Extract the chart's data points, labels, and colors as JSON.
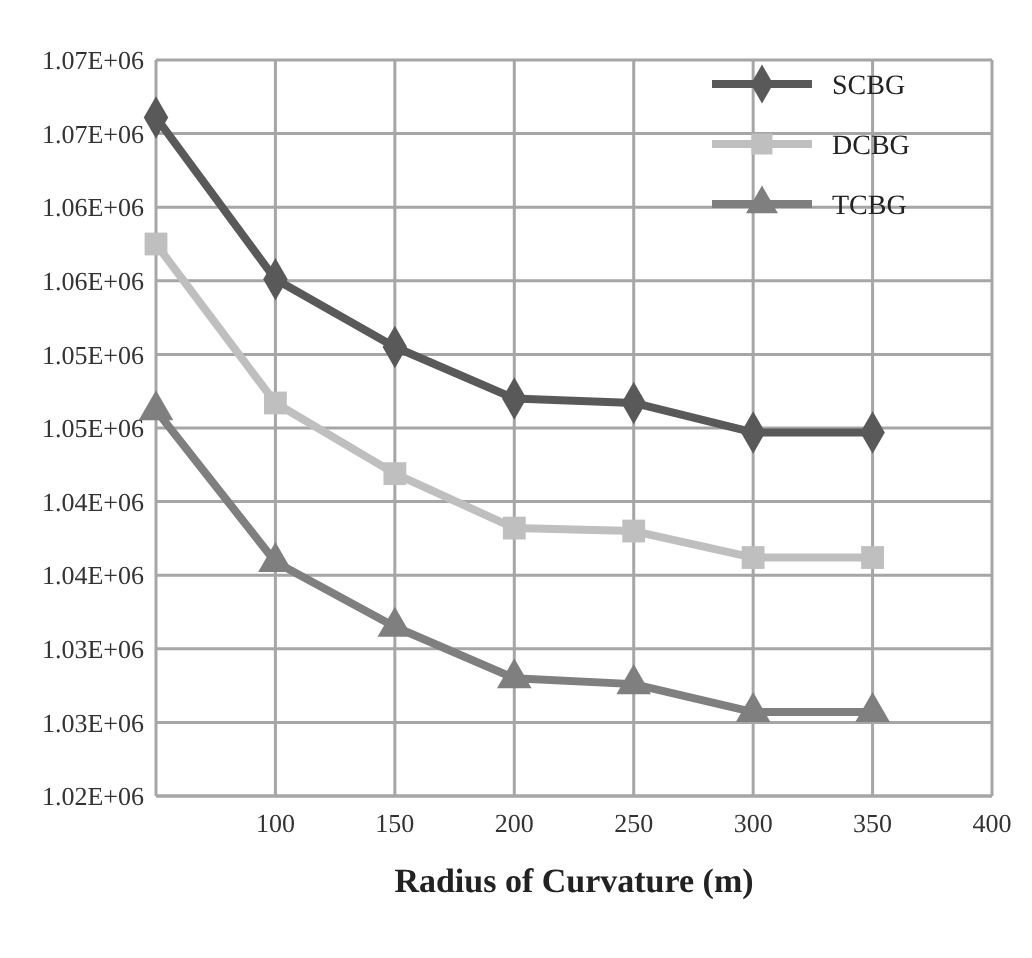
{
  "chart_data": {
    "type": "line",
    "xlabel": "Radius of Curvature (m)",
    "x": [
      50,
      100,
      150,
      200,
      250,
      300,
      350
    ],
    "series": [
      {
        "name": "SCBG",
        "color": "#595959",
        "marker": "diamond",
        "values": [
          1066100,
          1055100,
          1050500,
          1047000,
          1046700,
          1044700,
          1044700
        ]
      },
      {
        "name": "DCBG",
        "color": "#bfbfbf",
        "marker": "square",
        "values": [
          1057500,
          1046700,
          1041900,
          1038200,
          1038000,
          1036200,
          1036200
        ]
      },
      {
        "name": "TCBG",
        "color": "#7f7f7f",
        "marker": "triangle",
        "values": [
          1046200,
          1035900,
          1031500,
          1028000,
          1027600,
          1025700,
          1025700
        ]
      }
    ],
    "xlim": [
      50,
      400
    ],
    "xticks": [
      100,
      150,
      200,
      250,
      300,
      350,
      400
    ],
    "ylim": [
      1020000,
      1070000
    ],
    "yticks": [
      {
        "value": 1070000,
        "label": "1.07E+06"
      },
      {
        "value": 1065000,
        "label": "1.07E+06"
      },
      {
        "value": 1060000,
        "label": "1.06E+06"
      },
      {
        "value": 1055000,
        "label": "1.06E+06"
      },
      {
        "value": 1050000,
        "label": "1.05E+06"
      },
      {
        "value": 1045000,
        "label": "1.05E+06"
      },
      {
        "value": 1040000,
        "label": "1.04E+06"
      },
      {
        "value": 1035000,
        "label": "1.04E+06"
      },
      {
        "value": 1030000,
        "label": "1.03E+06"
      },
      {
        "value": 1025000,
        "label": "1.03E+06"
      },
      {
        "value": 1020000,
        "label": "1.02E+06"
      }
    ],
    "grid": true,
    "legend": "top right",
    "line_style": "solid"
  }
}
